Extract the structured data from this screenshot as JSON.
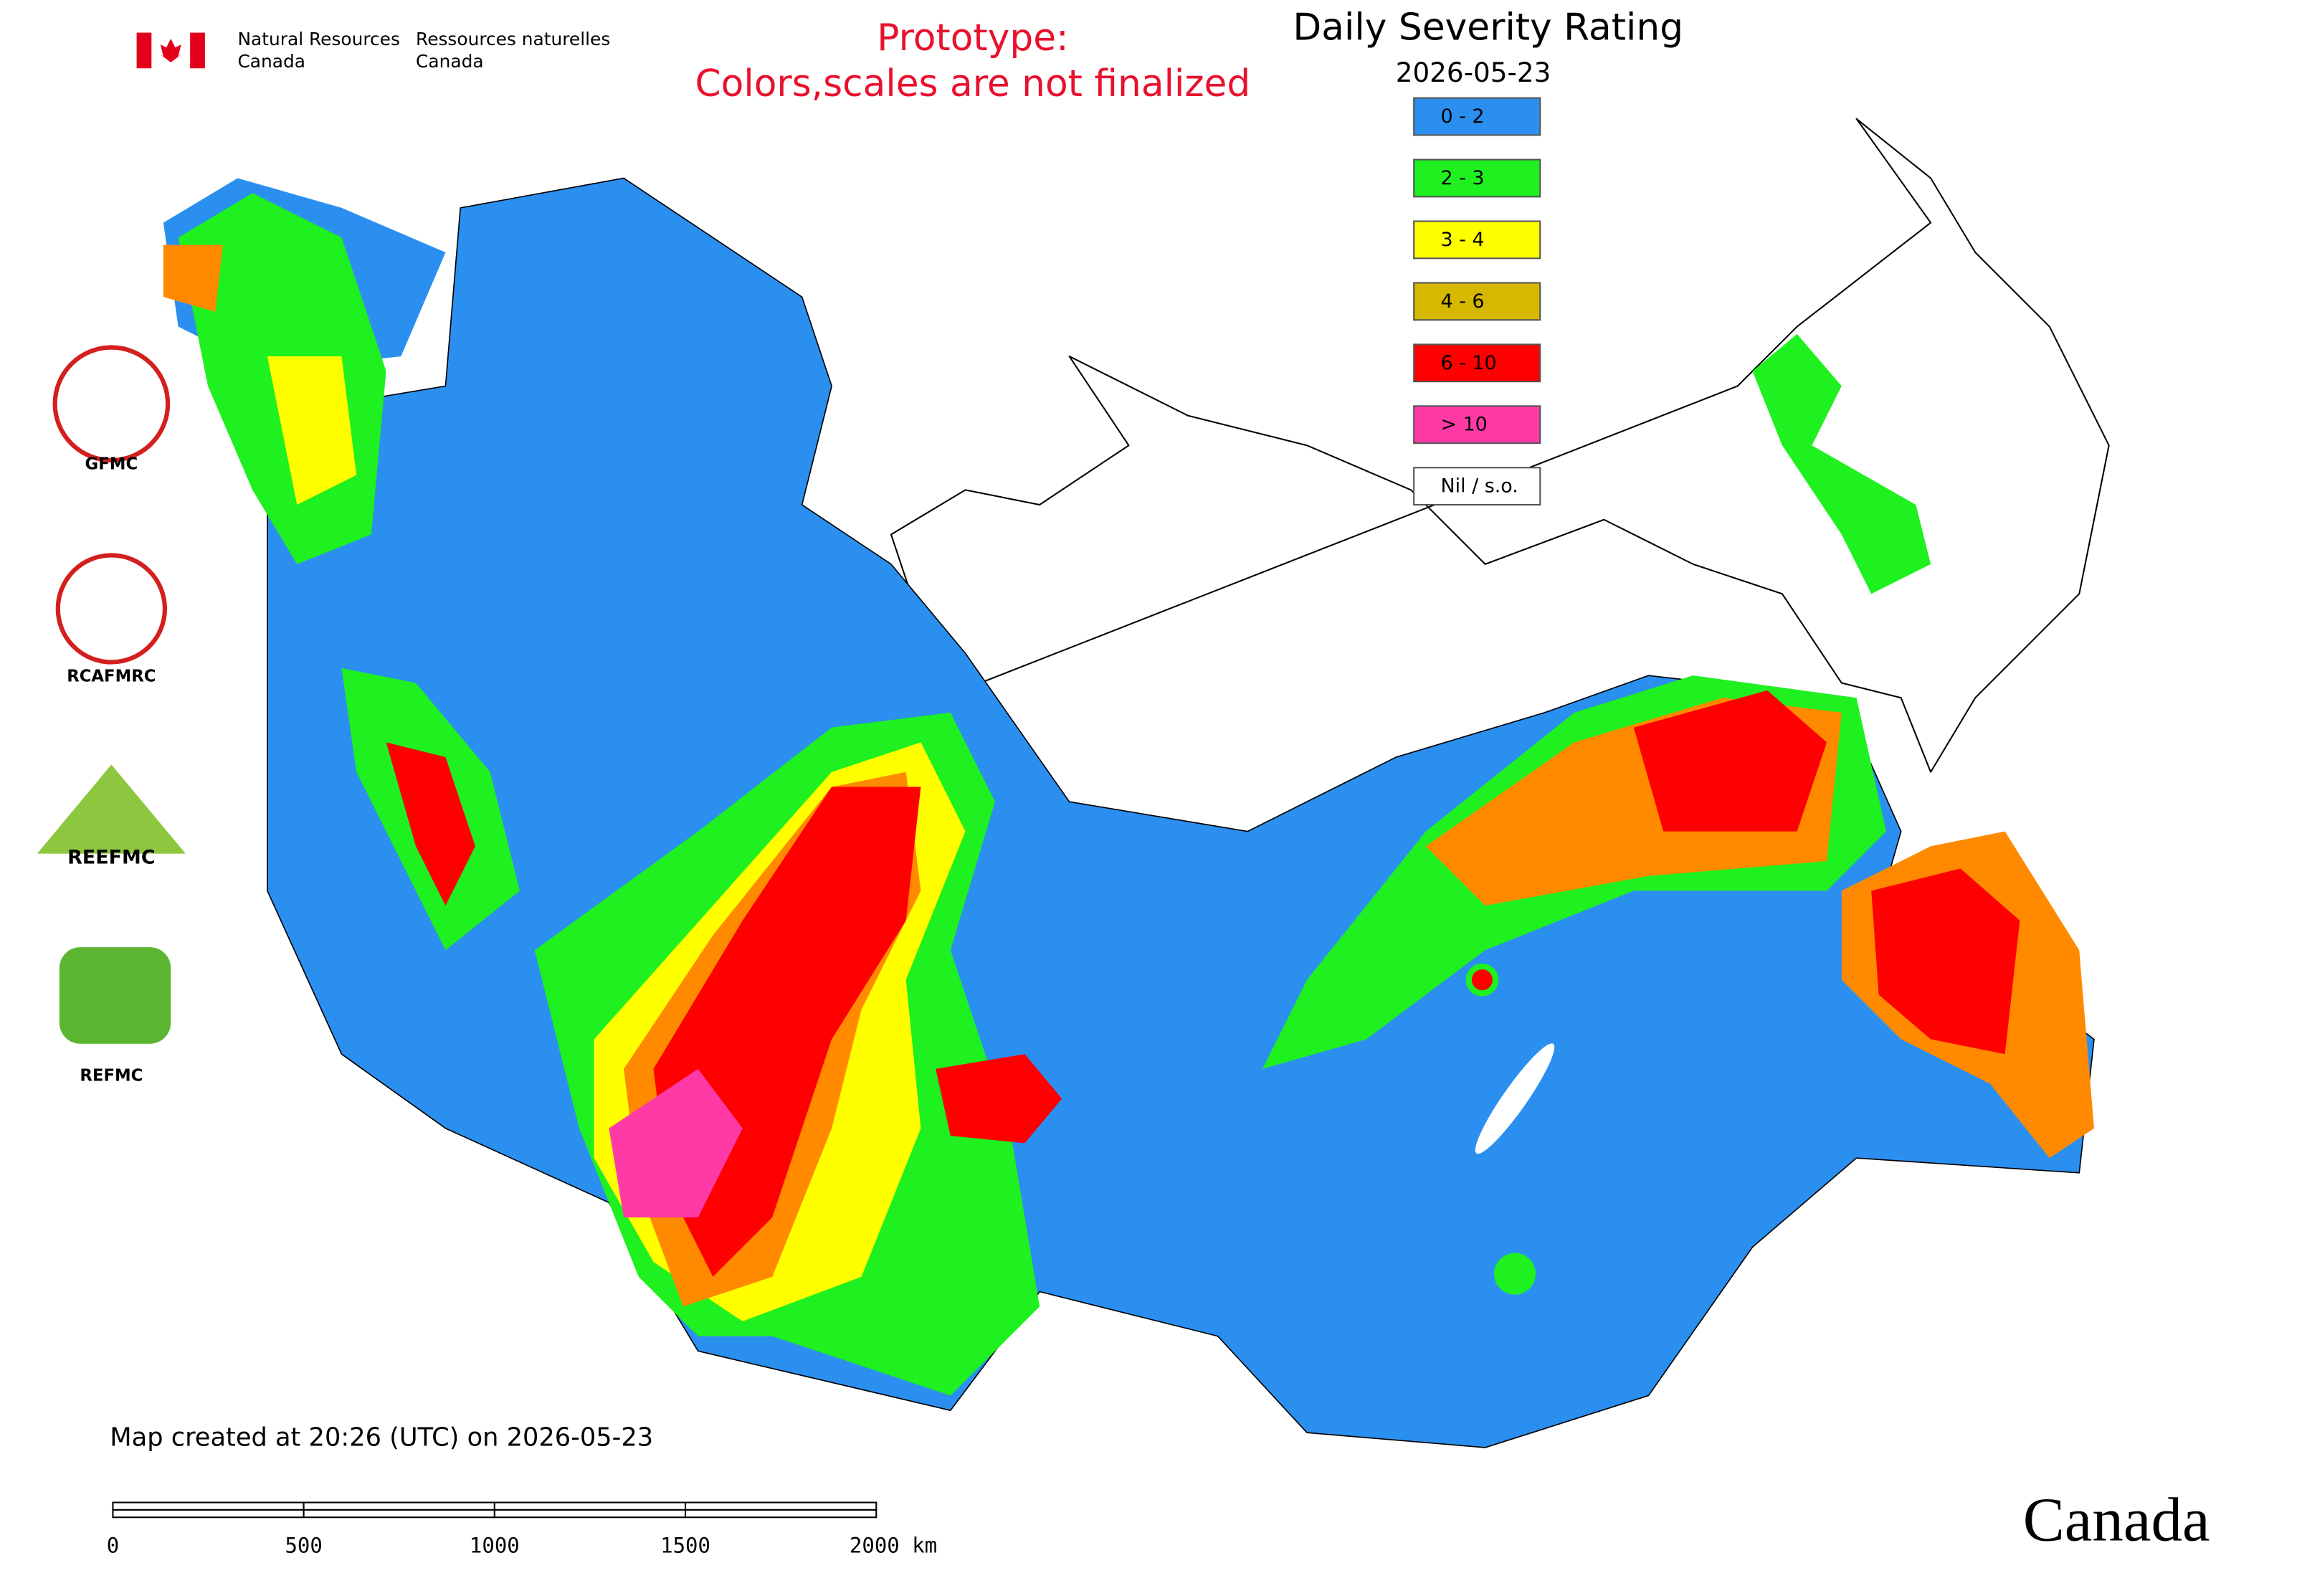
{
  "header": {
    "agency_en": [
      "Natural Resources",
      "Canada"
    ],
    "agency_fr": [
      "Ressources naturelles",
      "Canada"
    ],
    "prototype": [
      "Prototype:",
      "Colors,scales are not finalized"
    ]
  },
  "legend": {
    "title": "Daily Severity Rating",
    "date": "2026-05-23",
    "items": [
      {
        "label": "0 - 2",
        "color": "#2b8ff0"
      },
      {
        "label": "2 - 3",
        "color": "#1ff01f"
      },
      {
        "label": "3 - 4",
        "color": "#ffff00"
      },
      {
        "label": "4 - 6",
        "color": "#d6b800"
      },
      {
        "label": "6 - 10",
        "color": "#ff0000"
      },
      {
        "label": "> 10",
        "color": "#ff3aa6"
      },
      {
        "label": "Nil / s.o.",
        "color": "#ffffff"
      }
    ]
  },
  "logos": [
    "GFMC",
    "RCAFMRC",
    "REEFMC",
    "REFMC"
  ],
  "footer": {
    "created": "Map created at 20:26 (UTC) on 2026-05-23",
    "scale_labels": [
      "0",
      "500",
      "1000",
      "1500",
      "2000 km"
    ],
    "wordmark": "Canada"
  }
}
